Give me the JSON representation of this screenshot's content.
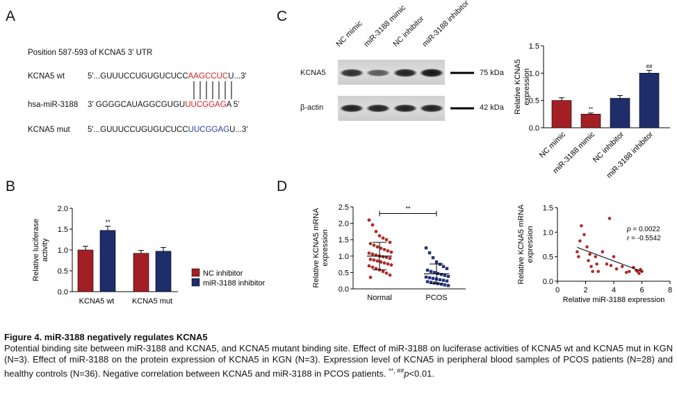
{
  "panel_letters": {
    "a": "A",
    "b": "B",
    "c": "C",
    "d": "D"
  },
  "panel_a": {
    "title": "Position 587-593 of KCNA5 3' UTR",
    "wt_name": "KCNA5 wt",
    "wt_prefix": "5'...GUUUCCUGUGUCUCC",
    "wt_site": "AAGCCUC",
    "wt_suffix": "U...3'",
    "mir_name": "hsa-miR-3188",
    "mir_prefix": "3' GGGGCAUAGGCGUGU",
    "mir_site": "UUCGGAG",
    "mir_suffix": "A 5'",
    "mut_name": "KCNA5 mut",
    "mut_prefix": "5'...GUUUCCUGUGUCUCC",
    "mut_site": "UUCGGAG",
    "mut_suffix": "U...3'"
  },
  "panel_c_blot": {
    "lanes": [
      "NC mimic",
      "miR-3188 mimic",
      "NC inhibitor",
      "miR-3188 inhibitor"
    ],
    "row1_label": "KCNA5",
    "row1_kda": "75 kDa",
    "row2_label": "β-actin",
    "row2_kda": "42 kDa",
    "band_intensity_kcna5": [
      0.8,
      0.45,
      0.9,
      1.0
    ],
    "band_intensity_actin": [
      0.9,
      0.9,
      0.9,
      0.9
    ]
  },
  "colors": {
    "red": "#a31f24",
    "navy": "#1f2d6b",
    "dot_red": "#b22a2a",
    "dot_navy": "#26327a"
  },
  "chart_data": [
    {
      "id": "B",
      "type": "bar",
      "ylabel": "Relative luciferase activity",
      "ylim": [
        0,
        2.0
      ],
      "yticks": [
        "0.0",
        "0.5",
        "1.0",
        "1.5",
        "2.0"
      ],
      "categories": [
        "KCNA5 wt",
        "KCNA5 mut"
      ],
      "series": [
        {
          "name": "NC inhibitor",
          "values": [
            1.0,
            0.92
          ],
          "errors": [
            0.09,
            0.07
          ]
        },
        {
          "name": "miR-3188 inhibitor",
          "values": [
            1.47,
            0.97
          ],
          "errors": [
            0.1,
            0.09
          ]
        }
      ],
      "annotations": [
        {
          "category": 0,
          "series": 1,
          "text": "**"
        }
      ],
      "legend": "right"
    },
    {
      "id": "C-bar",
      "type": "bar",
      "ylabel": "Relative KCNA5 expression",
      "ylim": [
        0,
        1.5
      ],
      "yticks": [
        "0.0",
        "0.5",
        "1.0",
        "1.5"
      ],
      "categories": [
        "NC mimic",
        "miR-3188 mimic",
        "NC inhibitor",
        "miR-3188 inhibitor"
      ],
      "values": [
        0.5,
        0.25,
        0.54,
        1.0
      ],
      "errors": [
        0.05,
        0.02,
        0.05,
        0.05
      ],
      "annotations": [
        {
          "category": 1,
          "text": "**"
        },
        {
          "category": 3,
          "text": "##"
        }
      ]
    },
    {
      "id": "D-scatter",
      "type": "scatter",
      "ylabel": "Relative KCNA5 mRNA expression",
      "ylim": [
        0,
        2.5
      ],
      "yticks": [
        "0.0",
        "0.5",
        "1.0",
        "1.5",
        "2.0",
        "2.5"
      ],
      "categories": [
        "Normal",
        "PCOS"
      ],
      "groups": [
        {
          "name": "Normal",
          "mean": 1.0,
          "sd": 0.42,
          "values": [
            2.1,
            1.95,
            1.75,
            1.62,
            1.55,
            1.5,
            1.42,
            1.38,
            1.33,
            1.28,
            1.24,
            1.2,
            1.16,
            1.12,
            1.09,
            1.06,
            1.03,
            1.0,
            0.98,
            0.96,
            0.93,
            0.9,
            0.88,
            0.85,
            0.82,
            0.79,
            0.76,
            0.73,
            0.7,
            0.66,
            0.62,
            0.58,
            0.53,
            0.48,
            0.42,
            0.35
          ]
        },
        {
          "name": "PCOS",
          "mean": 0.46,
          "sd": 0.3,
          "values": [
            1.25,
            1.1,
            0.95,
            0.82,
            0.75,
            0.68,
            0.62,
            0.57,
            0.53,
            0.5,
            0.47,
            0.44,
            0.41,
            0.38,
            0.36,
            0.34,
            0.32,
            0.3,
            0.28,
            0.26,
            0.24,
            0.22,
            0.2,
            0.18,
            0.16,
            0.14,
            0.12,
            0.1
          ]
        }
      ],
      "bracket_text": "**"
    },
    {
      "id": "D-correlation",
      "type": "scatter",
      "xlabel": "Relative miR-3188 expression",
      "ylabel": "Relative KCNA5 mRNA expression",
      "xlim": [
        0,
        8
      ],
      "ylim": [
        0,
        1.5
      ],
      "xticks": [
        "0",
        "2",
        "4",
        "6",
        "8"
      ],
      "yticks": [
        "0.0",
        "0.5",
        "1.0",
        "1.5"
      ],
      "points": [
        [
          1.4,
          0.6
        ],
        [
          1.5,
          0.5
        ],
        [
          1.6,
          0.82
        ],
        [
          1.7,
          1.13
        ],
        [
          1.9,
          0.95
        ],
        [
          2.1,
          0.7
        ],
        [
          2.2,
          0.42
        ],
        [
          2.3,
          0.55
        ],
        [
          2.4,
          0.3
        ],
        [
          2.5,
          0.2
        ],
        [
          2.7,
          0.5
        ],
        [
          2.8,
          0.35
        ],
        [
          2.9,
          0.2
        ],
        [
          3.2,
          0.6
        ],
        [
          3.5,
          0.35
        ],
        [
          3.7,
          1.28
        ],
        [
          3.8,
          0.32
        ],
        [
          4.0,
          0.5
        ],
        [
          4.2,
          0.25
        ],
        [
          4.6,
          0.3
        ],
        [
          4.9,
          0.18
        ],
        [
          5.1,
          0.2
        ],
        [
          5.4,
          0.28
        ],
        [
          5.6,
          0.22
        ],
        [
          5.7,
          0.2
        ],
        [
          5.8,
          0.16
        ],
        [
          5.9,
          0.24
        ],
        [
          6.0,
          0.2
        ]
      ],
      "fit_line": [
        [
          1.4,
          0.69
        ],
        [
          6.0,
          0.2
        ]
      ],
      "stats": {
        "p_label": "p",
        "p_value": " = 0.0022",
        "r_label": "r",
        "r_value": " = -0.5542"
      }
    }
  ],
  "caption": {
    "title": "Figure 4. miR-3188 negatively regulates KCNA5",
    "body_main": "Potential binding site between miR-3188 and KCNA5, and KCNA5 mutant binding site. Effect of miR-3188 on luciferase activities of KCNA5 wt and KCNA5 mut in KGN (N=3). Effect of miR-3188 on the protein expression of KCNA5 in KGN (N=3). Expression level of KCNA5 in peripheral blood samples of PCOS patients (N=28) and healthy controls (N=36). Negative correlation between KCNA5 and miR-3188 in PCOS patients. ",
    "sig_marks": "**, ##",
    "p_text": "p",
    "tail": "<0.01."
  }
}
